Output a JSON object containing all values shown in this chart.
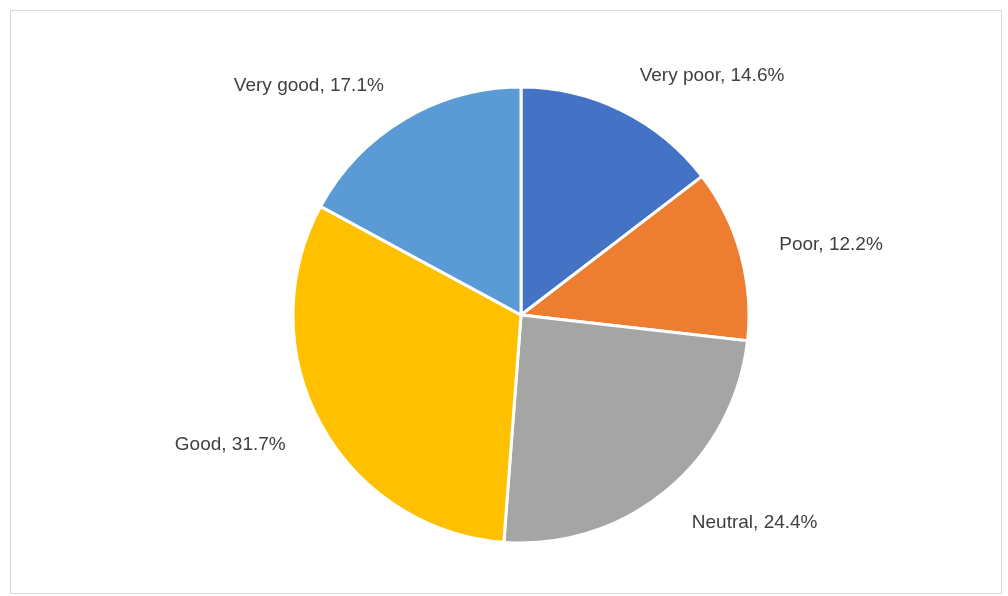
{
  "chart_data": {
    "type": "pie",
    "categories": [
      "Very poor",
      "Poor",
      "Neutral",
      "Good",
      "Very good"
    ],
    "values": [
      14.6,
      12.2,
      24.4,
      31.7,
      17.1
    ],
    "colors": [
      "#4472c4",
      "#ed7d31",
      "#a5a5a5",
      "#ffc000",
      "#5b9bd5"
    ],
    "value_labels": [
      "14.6%",
      "12.2%",
      "24.4%",
      "31.7%",
      "17.1%"
    ],
    "legend": false
  }
}
